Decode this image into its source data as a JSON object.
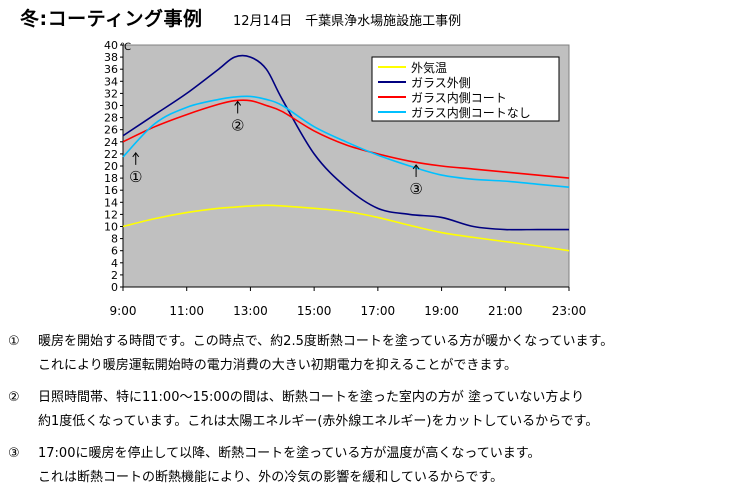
{
  "header": {
    "title": "冬:コーティング事例",
    "subtitle": "12月14日　千葉県浄水場施設施工事例"
  },
  "chart_data": {
    "type": "line",
    "y_unit": "℃",
    "x_ticks": [
      "9:00",
      "11:00",
      "13:00",
      "15:00",
      "17:00",
      "19:00",
      "21:00",
      "23:00"
    ],
    "ylim": [
      0,
      40
    ],
    "y_ticks": [
      0,
      2,
      4,
      6,
      8,
      10,
      12,
      14,
      16,
      18,
      20,
      22,
      24,
      26,
      28,
      30,
      32,
      34,
      36,
      38,
      40
    ],
    "x_hours": [
      9,
      10,
      11,
      12,
      12.5,
      13,
      13.5,
      14,
      15,
      16,
      17,
      18,
      19,
      20,
      21,
      22,
      23
    ],
    "legend_position": "top-right",
    "series": [
      {
        "name": "外気温",
        "color": "#ffff00",
        "values": [
          10,
          11.3,
          12.3,
          13,
          13.2,
          13.4,
          13.5,
          13.4,
          13,
          12.5,
          11.5,
          10.2,
          9,
          8.2,
          7.5,
          6.8,
          6
        ]
      },
      {
        "name": "ガラス外側",
        "color": "#000080",
        "values": [
          25,
          28.5,
          32,
          36,
          38,
          38,
          36,
          31,
          22,
          16.5,
          13,
          12,
          11.5,
          10,
          9.5,
          9.5,
          9.5
        ]
      },
      {
        "name": "ガラス内側コート",
        "color": "#ff0000",
        "values": [
          24,
          26.5,
          28.5,
          30.2,
          30.8,
          30.8,
          30,
          29,
          25.8,
          23.5,
          22,
          20.8,
          20,
          19.5,
          19,
          18.5,
          18
        ]
      },
      {
        "name": "ガラス内側コートなし",
        "color": "#00c0ff",
        "values": [
          21.5,
          27,
          29.7,
          31,
          31.4,
          31.5,
          31,
          30,
          26.5,
          24,
          21.8,
          20,
          18.5,
          17.8,
          17.5,
          17,
          16.5
        ]
      }
    ],
    "annotations": [
      {
        "label": "①",
        "x_hour": 9.4,
        "y": 22.5
      },
      {
        "label": "②",
        "x_hour": 12.6,
        "y": 31
      },
      {
        "label": "③",
        "x_hour": 18.2,
        "y": 20.5
      }
    ],
    "grid": false,
    "plot_background": "#c0c0c0"
  },
  "notes": [
    {
      "num": "①",
      "line1": "暖房を開始する時間です。この時点で、約2.5度断熱コートを塗っている方が暖かくなっています。",
      "line2": "これにより暖房運転開始時の電力消費の大きい初期電力を抑えることができます。"
    },
    {
      "num": "②",
      "line1": "日照時間帯、特に11:00～15:00の間は、断熱コートを塗った室内の方が 塗っていない方より",
      "line2": "約1度低くなっています。これは太陽エネルギー(赤外線エネルギー)をカットしているからです。"
    },
    {
      "num": "③",
      "line1": "17:00に暖房を停止して以降、断熱コートを塗っている方が温度が高くなっています。",
      "line2": "これは断熱コートの断熱機能により、外の冷気の影響を緩和しているからです。"
    }
  ]
}
